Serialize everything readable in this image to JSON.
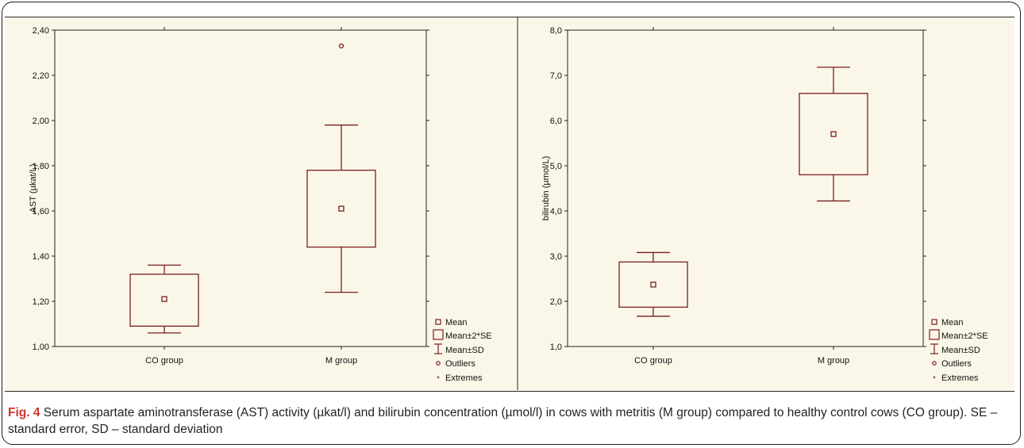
{
  "colors": {
    "box": "#7a1f1f",
    "background": "#fbf7e8",
    "axis": "#222222",
    "fig_label": "#d0352b"
  },
  "legend": {
    "mean": "Mean",
    "mean_se": "Mean±2*SE",
    "mean_sd": "Mean±SD",
    "outliers": "Outliers",
    "extremes": "Extremes"
  },
  "caption": {
    "label": "Fig. 4",
    "text": " Serum aspartate aminotransferase (AST) activity (µkat/l) and bilirubin concentration (µmol/l) in cows with metritis (M group) compared to healthy control cows (CO group). SE – standard error, SD – standard deviation"
  },
  "chart_data": [
    {
      "type": "box",
      "ylabel": "AST (µkat/L)",
      "ylim": [
        1.0,
        2.4
      ],
      "yticks": [
        "1,00",
        "1,20",
        "1,40",
        "1,60",
        "1,80",
        "2,00",
        "2,20",
        "2,40"
      ],
      "categories": [
        "CO group",
        "M group"
      ],
      "mean": [
        1.21,
        1.61
      ],
      "mean_minus_2se": [
        1.09,
        1.44
      ],
      "mean_plus_2se": [
        1.32,
        1.78
      ],
      "mean_minus_sd": [
        1.06,
        1.24
      ],
      "mean_plus_sd": [
        1.36,
        1.98
      ],
      "outliers": [
        [],
        [
          2.33
        ]
      ],
      "legend_position": "bottom-right"
    },
    {
      "type": "box",
      "ylabel": "bilirubin (µmol/L)",
      "ylim": [
        1.0,
        8.0
      ],
      "yticks": [
        "1,0",
        "2,0",
        "3,0",
        "4,0",
        "5,0",
        "6,0",
        "7,0",
        "8,0"
      ],
      "categories": [
        "CO group",
        "M group"
      ],
      "mean": [
        2.37,
        5.7
      ],
      "mean_minus_2se": [
        1.87,
        4.8
      ],
      "mean_plus_2se": [
        2.87,
        6.6
      ],
      "mean_minus_sd": [
        1.67,
        4.22
      ],
      "mean_plus_sd": [
        3.08,
        7.18
      ],
      "outliers": [
        [],
        []
      ],
      "legend_position": "bottom-right"
    }
  ]
}
